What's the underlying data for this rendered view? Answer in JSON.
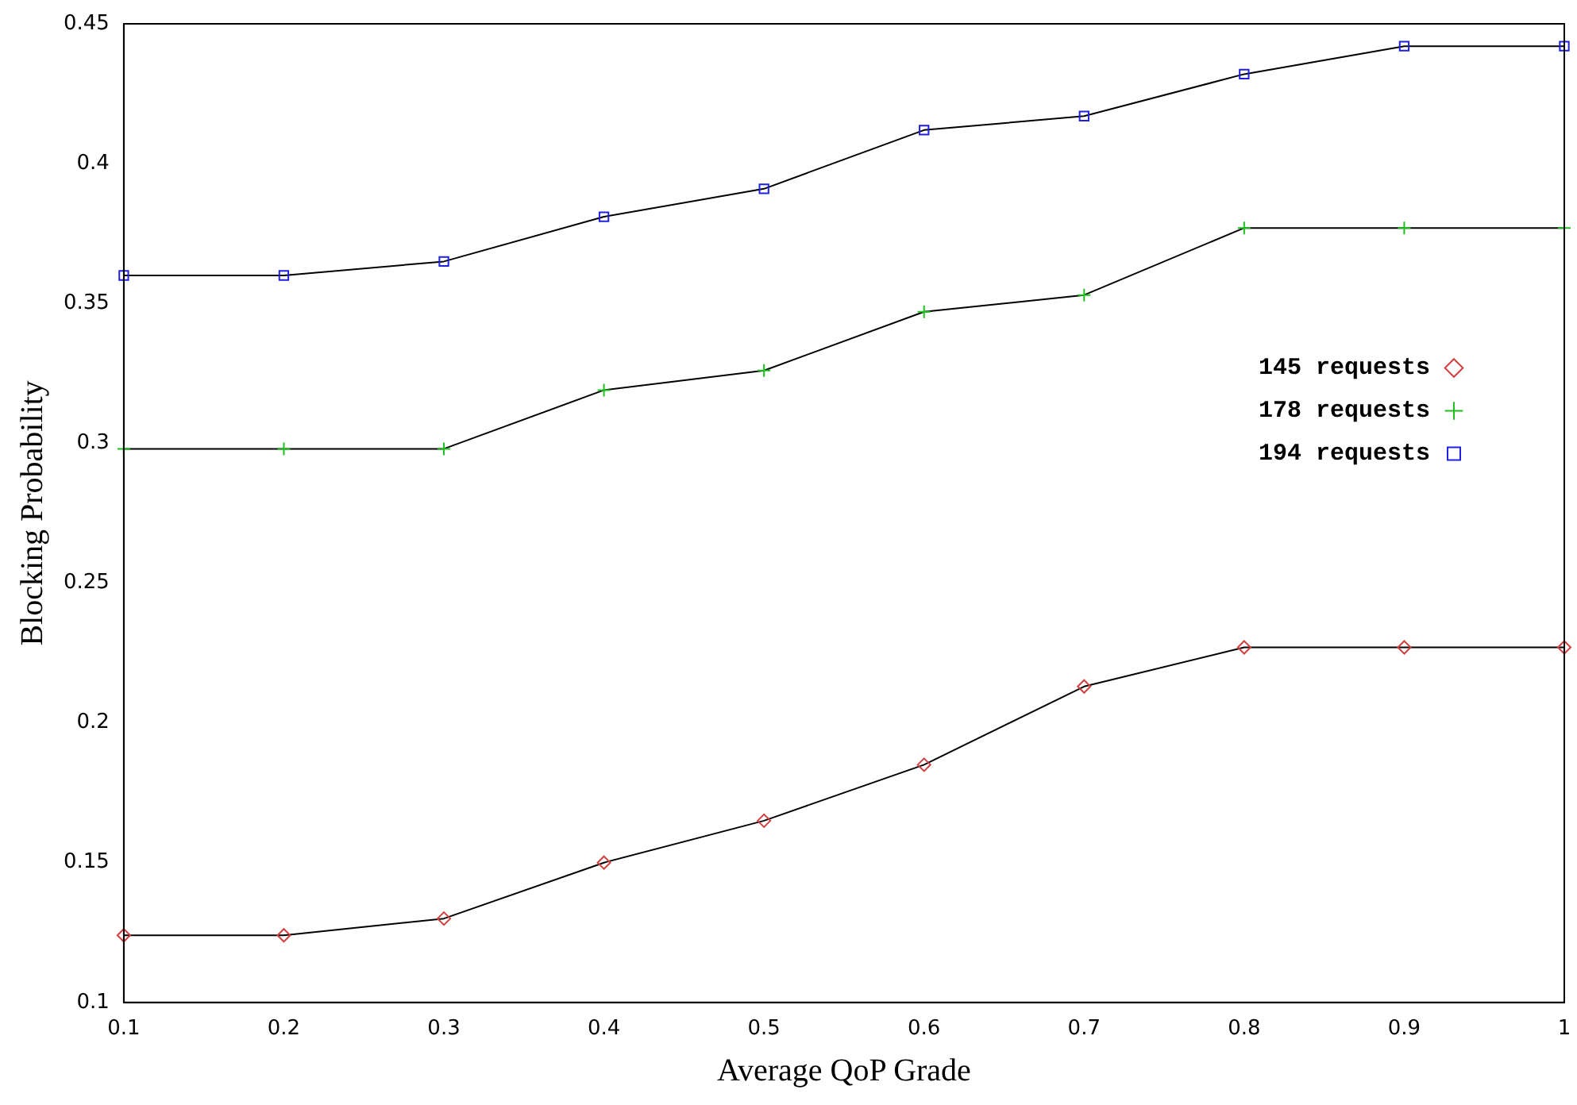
{
  "chart_data": {
    "type": "line",
    "xlabel": "Average QoP Grade",
    "ylabel": "Blocking Probability",
    "x": [
      0.1,
      0.2,
      0.3,
      0.4,
      0.5,
      0.6,
      0.7,
      0.8,
      0.9,
      1
    ],
    "series": [
      {
        "name": "145 requests",
        "color": "#d04040",
        "marker": "diamond",
        "values": [
          0.124,
          0.124,
          0.13,
          0.15,
          0.165,
          0.185,
          0.213,
          0.227,
          0.227,
          0.227
        ]
      },
      {
        "name": "178 requests",
        "color": "#20c020",
        "marker": "cross",
        "values": [
          0.298,
          0.298,
          0.298,
          0.319,
          0.326,
          0.347,
          0.353,
          0.377,
          0.377,
          0.377
        ]
      },
      {
        "name": "194 requests",
        "color": "#2020e0",
        "marker": "square",
        "values": [
          0.36,
          0.36,
          0.365,
          0.381,
          0.391,
          0.412,
          0.417,
          0.432,
          0.442,
          0.442
        ]
      }
    ],
    "xlim": [
      0.1,
      1
    ],
    "xticks": [
      0.1,
      0.2,
      0.3,
      0.4,
      0.5,
      0.6,
      0.7,
      0.8,
      0.9,
      1
    ],
    "ylim": [
      0.1,
      0.45
    ],
    "yticks": [
      0.1,
      0.15,
      0.2,
      0.25,
      0.3,
      0.35,
      0.4,
      0.45
    ],
    "grid": false,
    "legend": "right",
    "line_style": "solid"
  }
}
